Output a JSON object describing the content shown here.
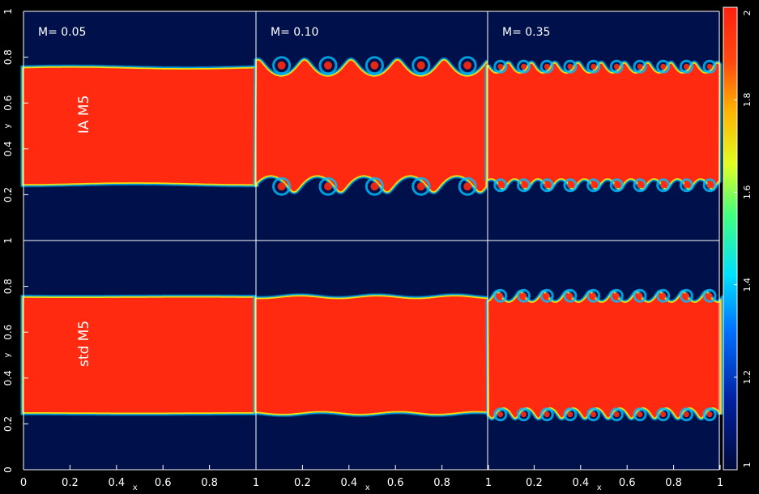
{
  "chart_data": {
    "type": "heatmap",
    "description_rows": [
      "IA M5",
      "std M5"
    ],
    "columns": [
      "M= 0.05",
      "M= 0.10",
      "M= 0.35"
    ],
    "row_labels": [
      "IA M5",
      "std M5"
    ],
    "xlabel": "x",
    "ylabel": "y",
    "x_ticks": [
      "0",
      "0.2",
      "0.4",
      "0.6",
      "0.8",
      "1"
    ],
    "y_ticks": [
      "0",
      "0.2",
      "0.4",
      "0.6",
      "0.8",
      "1"
    ],
    "xlim": [
      0,
      1
    ],
    "ylim": [
      0,
      1
    ],
    "colorbar": {
      "range": [
        1,
        2
      ],
      "ticks": [
        "1",
        "1.2",
        "1.4",
        "1.6",
        "1.8",
        "2"
      ]
    },
    "band": {
      "y_low": 0.25,
      "y_high": 0.75,
      "inside_value": 2,
      "outside_value": 1
    },
    "panels": [
      {
        "row": 0,
        "col": 0,
        "mach": 0.05,
        "wave_amp": 0.004,
        "wave_count": 1,
        "curl": 0
      },
      {
        "row": 0,
        "col": 1,
        "mach": 0.1,
        "wave_amp": 0.035,
        "wave_count": 5,
        "curl": 1
      },
      {
        "row": 0,
        "col": 2,
        "mach": 0.35,
        "wave_amp": 0.022,
        "wave_count": 10,
        "curl": 1
      },
      {
        "row": 1,
        "col": 0,
        "mach": 0.05,
        "wave_amp": 0.001,
        "wave_count": 1,
        "curl": 0
      },
      {
        "row": 1,
        "col": 1,
        "mach": 0.1,
        "wave_amp": 0.006,
        "wave_count": 3,
        "curl": 0
      },
      {
        "row": 1,
        "col": 2,
        "mach": 0.35,
        "wave_amp": 0.022,
        "wave_count": 10,
        "curl": 1
      }
    ],
    "colors": {
      "inside": "#ff2a10",
      "outside": "#00104a",
      "edge1": "#ffe000",
      "edge2": "#00c0ff",
      "axis": "#ffffff"
    }
  }
}
